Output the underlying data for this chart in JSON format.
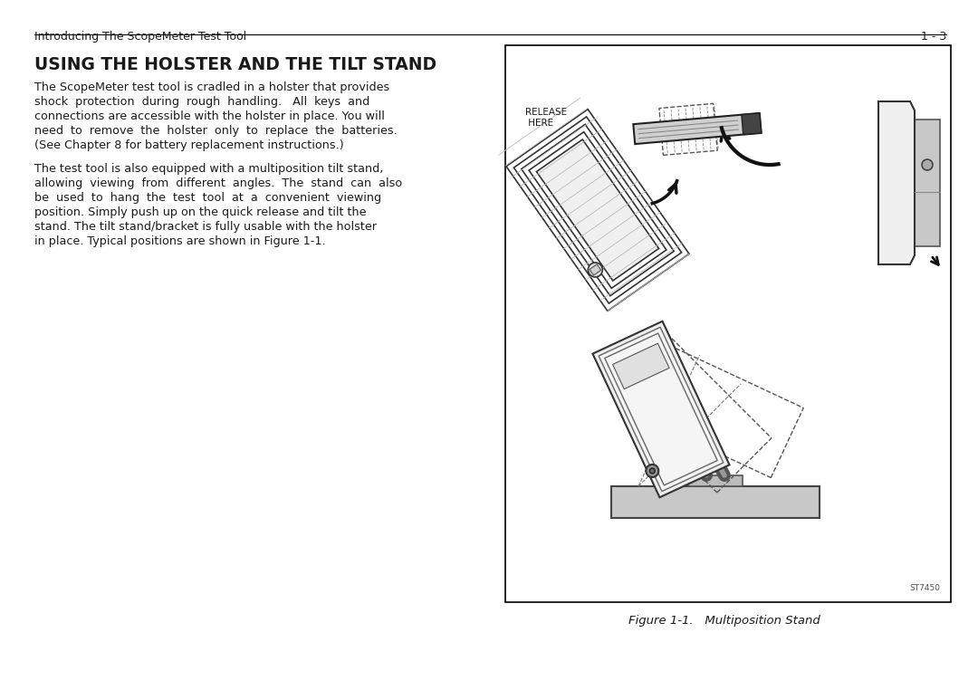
{
  "bg_color": "#ffffff",
  "page_header_left": "Introducing The ScopeMeter Test Tool",
  "page_header_right": "1 - 3",
  "section_title": "USING THE HOLSTER AND THE TILT STAND",
  "p1_lines": [
    "The ScopeMeter test tool is cradled in a holster that provides",
    "shock  protection  during  rough  handling.   All  keys  and",
    "connections are accessible with the holster in place. You will",
    "need  to  remove  the  holster  only  to  replace  the  batteries.",
    "(See Chapter 8 for battery replacement instructions.)"
  ],
  "p2_lines": [
    "The test tool is also equipped with a multiposition tilt stand,",
    "allowing  viewing  from  different  angles.  The  stand  can  also",
    "be  used  to  hang  the  test  tool  at  a  convenient  viewing",
    "position. Simply push up on the quick release and tilt the",
    "stand. The tilt stand/bracket is fully usable with the holster",
    "in place. Typical positions are shown in Figure 1-1."
  ],
  "figure_caption": "Figure 1-1.   Multiposition Stand",
  "figure_label": "ST7450",
  "text_color": "#1a1a1a",
  "release_label": "RELEASE\nHERE"
}
